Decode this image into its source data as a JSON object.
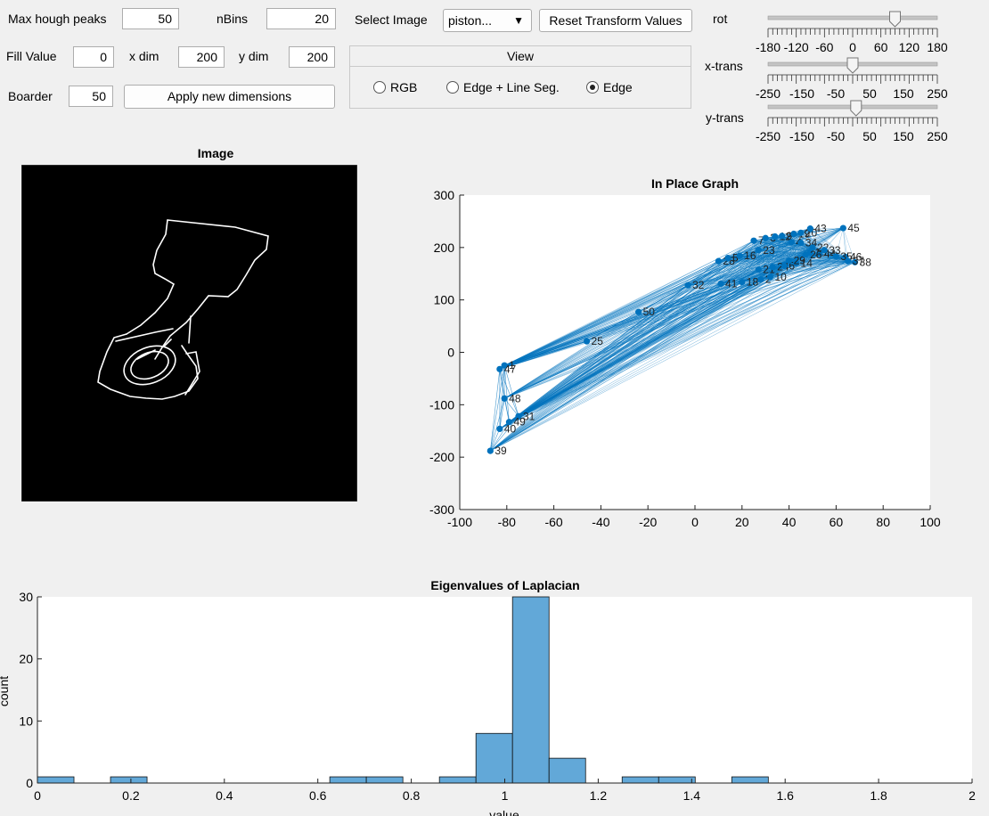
{
  "controls": {
    "max_hough_peaks_label": "Max hough peaks",
    "max_hough_peaks_value": "50",
    "nbins_label": "nBins",
    "nbins_value": "20",
    "fill_value_label": "Fill Value",
    "fill_value_value": "0",
    "xdim_label": "x dim",
    "xdim_value": "200",
    "ydim_label": "y dim",
    "ydim_value": "200",
    "boarder_label": "Boarder",
    "boarder_value": "50",
    "apply_button": "Apply new dimensions",
    "select_image_label": "Select Image",
    "select_image_value": "piston...",
    "reset_button": "Reset Transform Values"
  },
  "view_panel": {
    "title": "View",
    "options": [
      "RGB",
      "Edge + Line Seg.",
      "Edge"
    ],
    "selected": 2
  },
  "sliders": {
    "rot": {
      "label": "rot",
      "ticks": [
        "-180",
        "-120",
        "-60",
        "0",
        "60",
        "120",
        "180"
      ],
      "min": -180,
      "max": 180,
      "value": 90
    },
    "xtrans": {
      "label": "x-trans",
      "ticks": [
        "-250",
        "-150",
        "-50",
        "50",
        "150",
        "250"
      ],
      "min": -250,
      "max": 250,
      "value": 0
    },
    "ytrans": {
      "label": "y-trans",
      "ticks": [
        "-250",
        "-150",
        "-50",
        "50",
        "150",
        "250"
      ],
      "min": -250,
      "max": 250,
      "value": 10
    }
  },
  "image_axes": {
    "title": "Image"
  },
  "graph_chart": {
    "title": "In Place Graph",
    "x_ticks": [
      "-100",
      "-80",
      "-60",
      "-40",
      "-20",
      "0",
      "20",
      "40",
      "60",
      "80",
      "100"
    ],
    "y_ticks": [
      "300",
      "200",
      "100",
      "0",
      "-100",
      "-200",
      "-300"
    ],
    "accent_color": "#0072bd"
  },
  "chart_data": [
    {
      "type": "scatter",
      "title": "In Place Graph",
      "xlim": [
        -100,
        100
      ],
      "ylim": [
        -300,
        300
      ],
      "nodes": [
        {
          "label": "1",
          "x": -81,
          "y": -25
        },
        {
          "label": "47",
          "x": -83,
          "y": -32
        },
        {
          "label": "48",
          "x": -81,
          "y": -88
        },
        {
          "label": "31",
          "x": -75,
          "y": -122
        },
        {
          "label": "49",
          "x": -79,
          "y": -133
        },
        {
          "label": "40",
          "x": -83,
          "y": -146
        },
        {
          "label": "39",
          "x": -87,
          "y": -188
        },
        {
          "label": "25",
          "x": -46,
          "y": 21
        },
        {
          "label": "50",
          "x": -24,
          "y": 77
        },
        {
          "label": "32",
          "x": -3,
          "y": 128
        },
        {
          "label": "41",
          "x": 11,
          "y": 131
        },
        {
          "label": "18",
          "x": 20,
          "y": 134
        },
        {
          "label": "2",
          "x": 28,
          "y": 139
        },
        {
          "label": "10",
          "x": 32,
          "y": 144
        },
        {
          "label": "28",
          "x": 10,
          "y": 174
        },
        {
          "label": "5",
          "x": 14,
          "y": 180
        },
        {
          "label": "16",
          "x": 19,
          "y": 184
        },
        {
          "label": "21",
          "x": 27,
          "y": 158
        },
        {
          "label": "24",
          "x": 33,
          "y": 163
        },
        {
          "label": "6",
          "x": 38,
          "y": 165
        },
        {
          "label": "14",
          "x": 43,
          "y": 170
        },
        {
          "label": "29",
          "x": 40,
          "y": 175
        },
        {
          "label": "23",
          "x": 27,
          "y": 195
        },
        {
          "label": "7",
          "x": 25,
          "y": 213
        },
        {
          "label": "3",
          "x": 30,
          "y": 218
        },
        {
          "label": "12",
          "x": 34,
          "y": 221
        },
        {
          "label": "9",
          "x": 37,
          "y": 222
        },
        {
          "label": "19",
          "x": 42,
          "y": 226
        },
        {
          "label": "20",
          "x": 45,
          "y": 228
        },
        {
          "label": "4",
          "x": 41,
          "y": 210
        },
        {
          "label": "34",
          "x": 45,
          "y": 209
        },
        {
          "label": "15",
          "x": 49,
          "y": 190
        },
        {
          "label": "44",
          "x": 53,
          "y": 188
        },
        {
          "label": "26",
          "x": 47,
          "y": 186
        },
        {
          "label": "43",
          "x": 49,
          "y": 236
        },
        {
          "label": "45",
          "x": 63,
          "y": 237
        },
        {
          "label": "46",
          "x": 64,
          "y": 182
        },
        {
          "label": "35",
          "x": 60,
          "y": 183
        },
        {
          "label": "38",
          "x": 68,
          "y": 172
        },
        {
          "label": "37",
          "x": 65,
          "y": 174
        },
        {
          "label": "22",
          "x": 50,
          "y": 200
        },
        {
          "label": "33",
          "x": 55,
          "y": 195
        }
      ]
    },
    {
      "type": "bar",
      "title": "Eigenvalues of Laplacian",
      "xlabel": "value",
      "ylabel": "count",
      "xlim": [
        0,
        2
      ],
      "ylim": [
        0,
        30
      ],
      "x_ticks": [
        "0",
        "0.2",
        "0.4",
        "0.6",
        "0.8",
        "1",
        "1.2",
        "1.4",
        "1.6",
        "1.8",
        "2"
      ],
      "y_ticks": [
        "0",
        "10",
        "20",
        "30"
      ],
      "bin_edges": [
        0,
        0.0782,
        0.1564,
        0.2346,
        0.3128,
        0.391,
        0.4692,
        0.5474,
        0.6256,
        0.7038,
        0.782,
        0.8602,
        0.9384,
        1.0166,
        1.0948,
        1.173,
        1.2512,
        1.3294,
        1.4076,
        1.4858,
        1.564
      ],
      "counts": [
        1,
        0,
        1,
        0,
        0,
        0,
        0,
        0,
        1,
        1,
        0,
        1,
        8,
        30,
        4,
        0,
        1,
        1,
        0,
        1
      ],
      "color": "#62a8d8"
    }
  ]
}
